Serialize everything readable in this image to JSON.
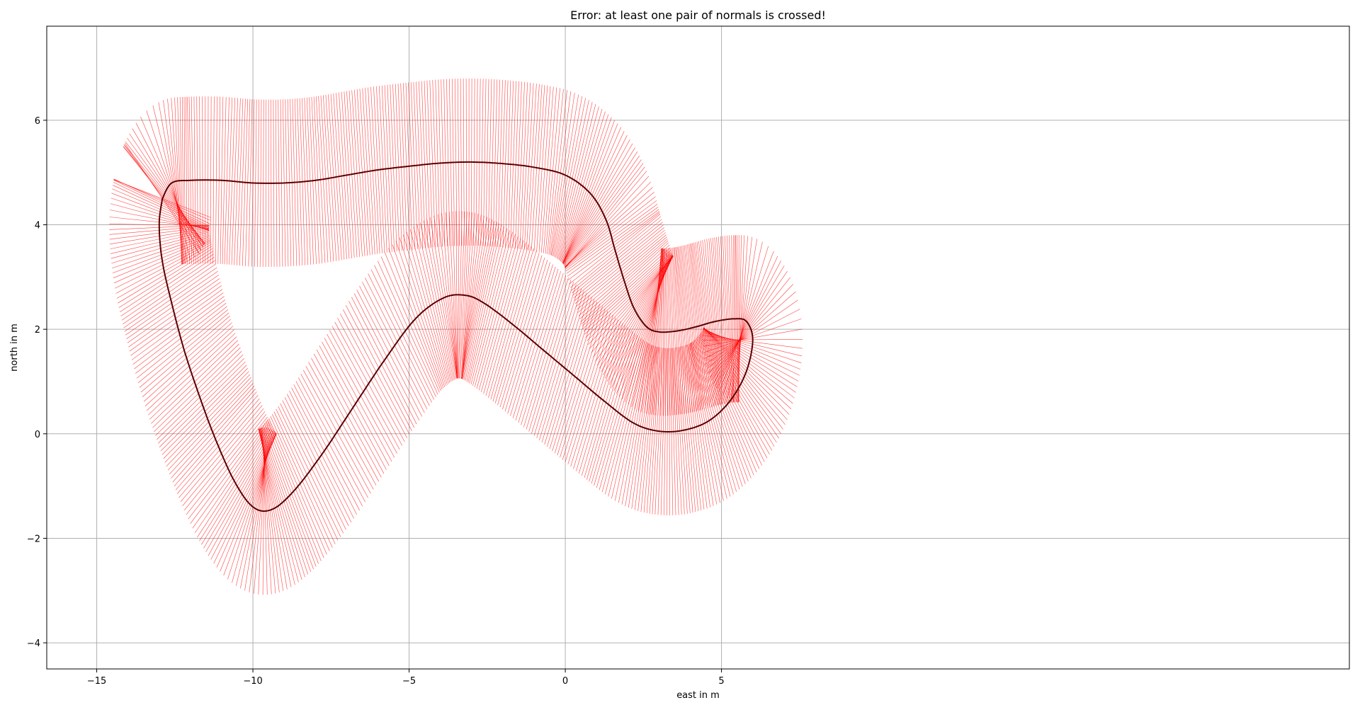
{
  "chart_data": {
    "type": "line",
    "title": "Error: at least one pair of normals is crossed!",
    "xlabel": "east in m",
    "ylabel": "north in m",
    "xlim": [
      -16.6,
      25.1
    ],
    "ylim": [
      -4.5,
      7.8
    ],
    "xticks": [
      -15,
      -10,
      -5,
      0,
      5
    ],
    "yticks": [
      -4,
      -2,
      0,
      2,
      4,
      6
    ],
    "grid": true,
    "legend": "none",
    "colors": {
      "track": "#5a0000",
      "normals": "#ff0000",
      "grid": "#b0b0b0"
    },
    "normal_half_length_m": 1.6,
    "series": [
      {
        "role": "centerline",
        "x": [
          -12.9,
          -12.6,
          -12.0,
          -11.0,
          -10.0,
          -9.0,
          -8.0,
          -7.0,
          -6.0,
          -5.0,
          -4.0,
          -3.0,
          -2.0,
          -1.0,
          0.0,
          0.8,
          1.3,
          1.6,
          1.9,
          2.2,
          2.6,
          3.0,
          3.6,
          4.2,
          4.8,
          5.4,
          5.8,
          6.0,
          5.8,
          5.3,
          4.6,
          3.8,
          3.0,
          2.2,
          1.3,
          0.3,
          -0.7,
          -1.7,
          -2.6,
          -3.2,
          -3.9,
          -4.8,
          -5.8,
          -6.8,
          -7.8,
          -8.7,
          -9.4,
          -10.0,
          -10.6,
          -11.2,
          -11.7,
          -12.2,
          -12.6,
          -12.9,
          -13.0,
          -12.9
        ],
        "y": [
          4.5,
          4.8,
          4.85,
          4.85,
          4.8,
          4.8,
          4.85,
          4.95,
          5.05,
          5.12,
          5.18,
          5.2,
          5.17,
          5.1,
          4.95,
          4.6,
          4.1,
          3.5,
          2.9,
          2.4,
          2.05,
          1.95,
          1.97,
          2.05,
          2.15,
          2.2,
          2.15,
          1.8,
          1.2,
          0.65,
          0.25,
          0.07,
          0.05,
          0.2,
          0.6,
          1.1,
          1.6,
          2.1,
          2.5,
          2.65,
          2.6,
          2.2,
          1.4,
          0.5,
          -0.4,
          -1.1,
          -1.45,
          -1.4,
          -0.9,
          -0.1,
          0.7,
          1.6,
          2.5,
          3.3,
          4.0,
          4.5
        ]
      }
    ]
  }
}
